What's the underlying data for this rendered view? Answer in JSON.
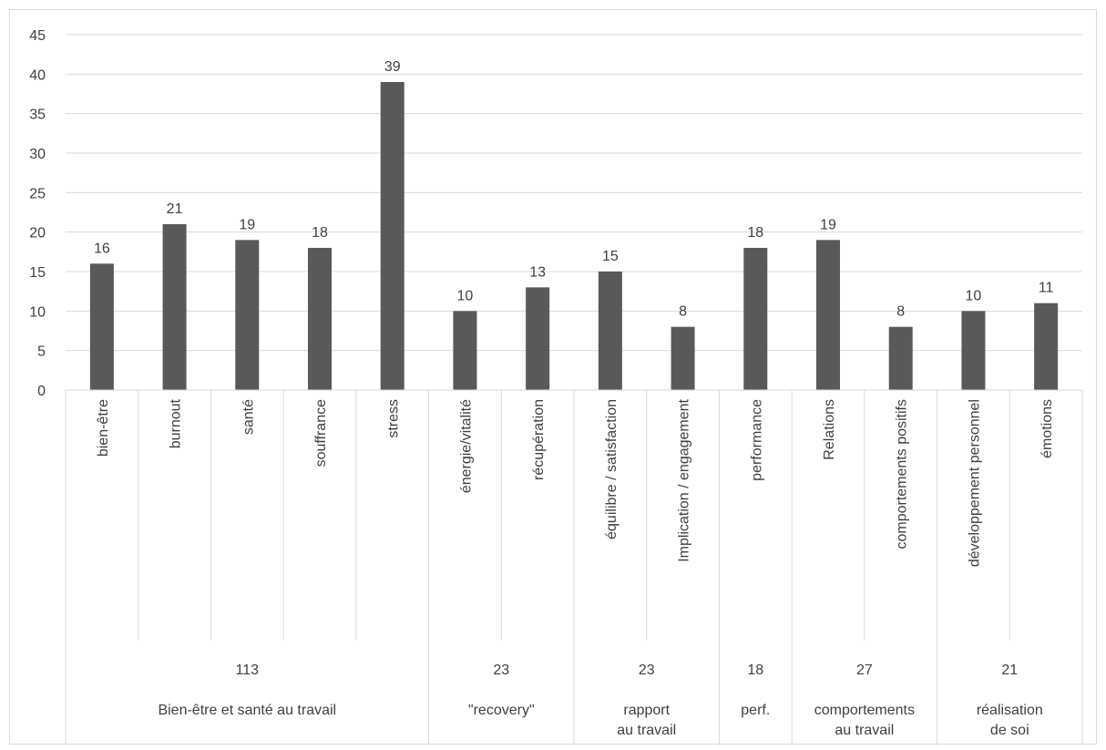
{
  "chart_data": {
    "type": "bar",
    "title": "",
    "xlabel": "",
    "ylabel": "",
    "ylim": [
      0,
      45
    ],
    "yticks": [
      0,
      5,
      10,
      15,
      20,
      25,
      30,
      35,
      40,
      45
    ],
    "grid": true,
    "legend": "none",
    "bar_color": "#595959",
    "grid_color": "#d9d9d9",
    "text_color": "#404040",
    "categories": [
      "bien-être",
      "burnout",
      "santé",
      "souffrance",
      "stress",
      "énergie/vitalité",
      "récupération",
      "équilibre / satisfaction",
      "Implication / engagement",
      "performance",
      "Relations",
      "comportements positifs",
      "développement personnel",
      "émotions"
    ],
    "values": [
      16,
      21,
      19,
      18,
      39,
      10,
      13,
      15,
      8,
      18,
      19,
      8,
      10,
      11
    ],
    "groups": [
      {
        "label_lines": [
          "Bien-être et santé au travail"
        ],
        "total": "113",
        "count": 5
      },
      {
        "label_lines": [
          "\"recovery\""
        ],
        "total": "23",
        "count": 2
      },
      {
        "label_lines": [
          "rapport",
          "au travail"
        ],
        "total": "23",
        "count": 2
      },
      {
        "label_lines": [
          "perf."
        ],
        "total": "18",
        "count": 1
      },
      {
        "label_lines": [
          "comportements",
          "au travail"
        ],
        "total": "27",
        "count": 2
      },
      {
        "label_lines": [
          "réalisation",
          "de soi"
        ],
        "total": "21",
        "count": 2
      }
    ]
  }
}
